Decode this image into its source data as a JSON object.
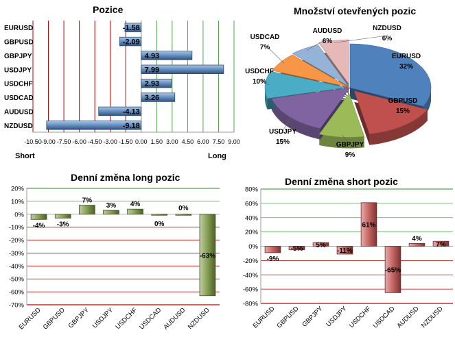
{
  "panels": {
    "positions": {
      "chart_type": "bar-horizontal",
      "title": "Pozice",
      "short_label": "Short",
      "long_label": "Long",
      "x_tick_labels": [
        "-10.50",
        "-9.00",
        "-7.50",
        "-6.00",
        "-4.50",
        "-3.00",
        "-1.50",
        "0.00",
        "1.50",
        "3.00",
        "4.50",
        "6.00",
        "7.50",
        "9.00"
      ],
      "xlim": [
        -10.5,
        9
      ],
      "categories": [
        "EURUSD",
        "GBPUSD",
        "GBPJPY",
        "USDJPY",
        "USDCHF",
        "USDCAD",
        "AUDUSD",
        "NZDUSD"
      ],
      "values": [
        -1.58,
        -2.09,
        4.93,
        7.99,
        2.93,
        3.26,
        -4.13,
        -9.18
      ],
      "value_labels": [
        "-1.58",
        "-2.09",
        "4.93",
        "7.99",
        "2.93",
        "3.26",
        "-4.13",
        "-9.18"
      ],
      "bar_color": "#4f81bd"
    },
    "open_positions": {
      "chart_type": "pie",
      "title": "Množství otevřených pozic",
      "slices": [
        {
          "label": "EURUSD",
          "percent_label": "32%",
          "value": 32,
          "color": "#4f81bd"
        },
        {
          "label": "GBPUSD",
          "percent_label": "15%",
          "value": 15,
          "color": "#c0504d"
        },
        {
          "label": "GBPJPY",
          "percent_label": "9%",
          "value": 9,
          "color": "#9bbb59"
        },
        {
          "label": "USDJPY",
          "percent_label": "15%",
          "value": 15,
          "color": "#8064a2"
        },
        {
          "label": "USDCHF",
          "percent_label": "10%",
          "value": 10,
          "color": "#4bacc6"
        },
        {
          "label": "USDCAD",
          "percent_label": "7%",
          "value": 7,
          "color": "#f79646"
        },
        {
          "label": "AUDUSD",
          "percent_label": "6%",
          "value": 6,
          "color": "#95b3d7"
        },
        {
          "label": "NZDUSD",
          "percent_label": "6%",
          "value": 6,
          "color": "#e6b9b8"
        }
      ]
    },
    "daily_long": {
      "chart_type": "bar",
      "title": "Denní změna long pozic",
      "categories": [
        "EURUSD",
        "GBPUSD",
        "GBPJPY",
        "USDJPY",
        "USDCHF",
        "USDCAD",
        "AUDUSD",
        "NZDUSD"
      ],
      "values": [
        -4,
        -3,
        7,
        3,
        4,
        0,
        0,
        -63
      ],
      "value_labels": [
        "-4%",
        "-3%",
        "7%",
        "3%",
        "4%",
        "0%",
        "0%",
        "-63%"
      ],
      "y_tick_labels": [
        "20%",
        "10%",
        "0%",
        "-10%",
        "-20%",
        "-30%",
        "-40%",
        "-50%",
        "-60%",
        "-70%"
      ],
      "ylim": [
        -70,
        20
      ],
      "bar_color": "#77933c"
    },
    "daily_short": {
      "chart_type": "bar",
      "title": "Denní změna short pozic",
      "categories": [
        "EURUSD",
        "GBPUSD",
        "GBPJPY",
        "USDJPY",
        "USDCHF",
        "USDCAD",
        "AUDUSD",
        "NZDUSD"
      ],
      "values": [
        -9,
        -5,
        5,
        -11,
        61,
        -65,
        4,
        7
      ],
      "value_labels": [
        "-9%",
        "-5%",
        "5%",
        "-11%",
        "61%",
        "-65%",
        "4%",
        "7%"
      ],
      "y_tick_labels": [
        "80%",
        "60%",
        "40%",
        "20%",
        "0%",
        "-20%",
        "-40%",
        "-60%",
        "-80%"
      ],
      "ylim": [
        -80,
        80
      ],
      "bar_color": "#c0504d"
    }
  }
}
